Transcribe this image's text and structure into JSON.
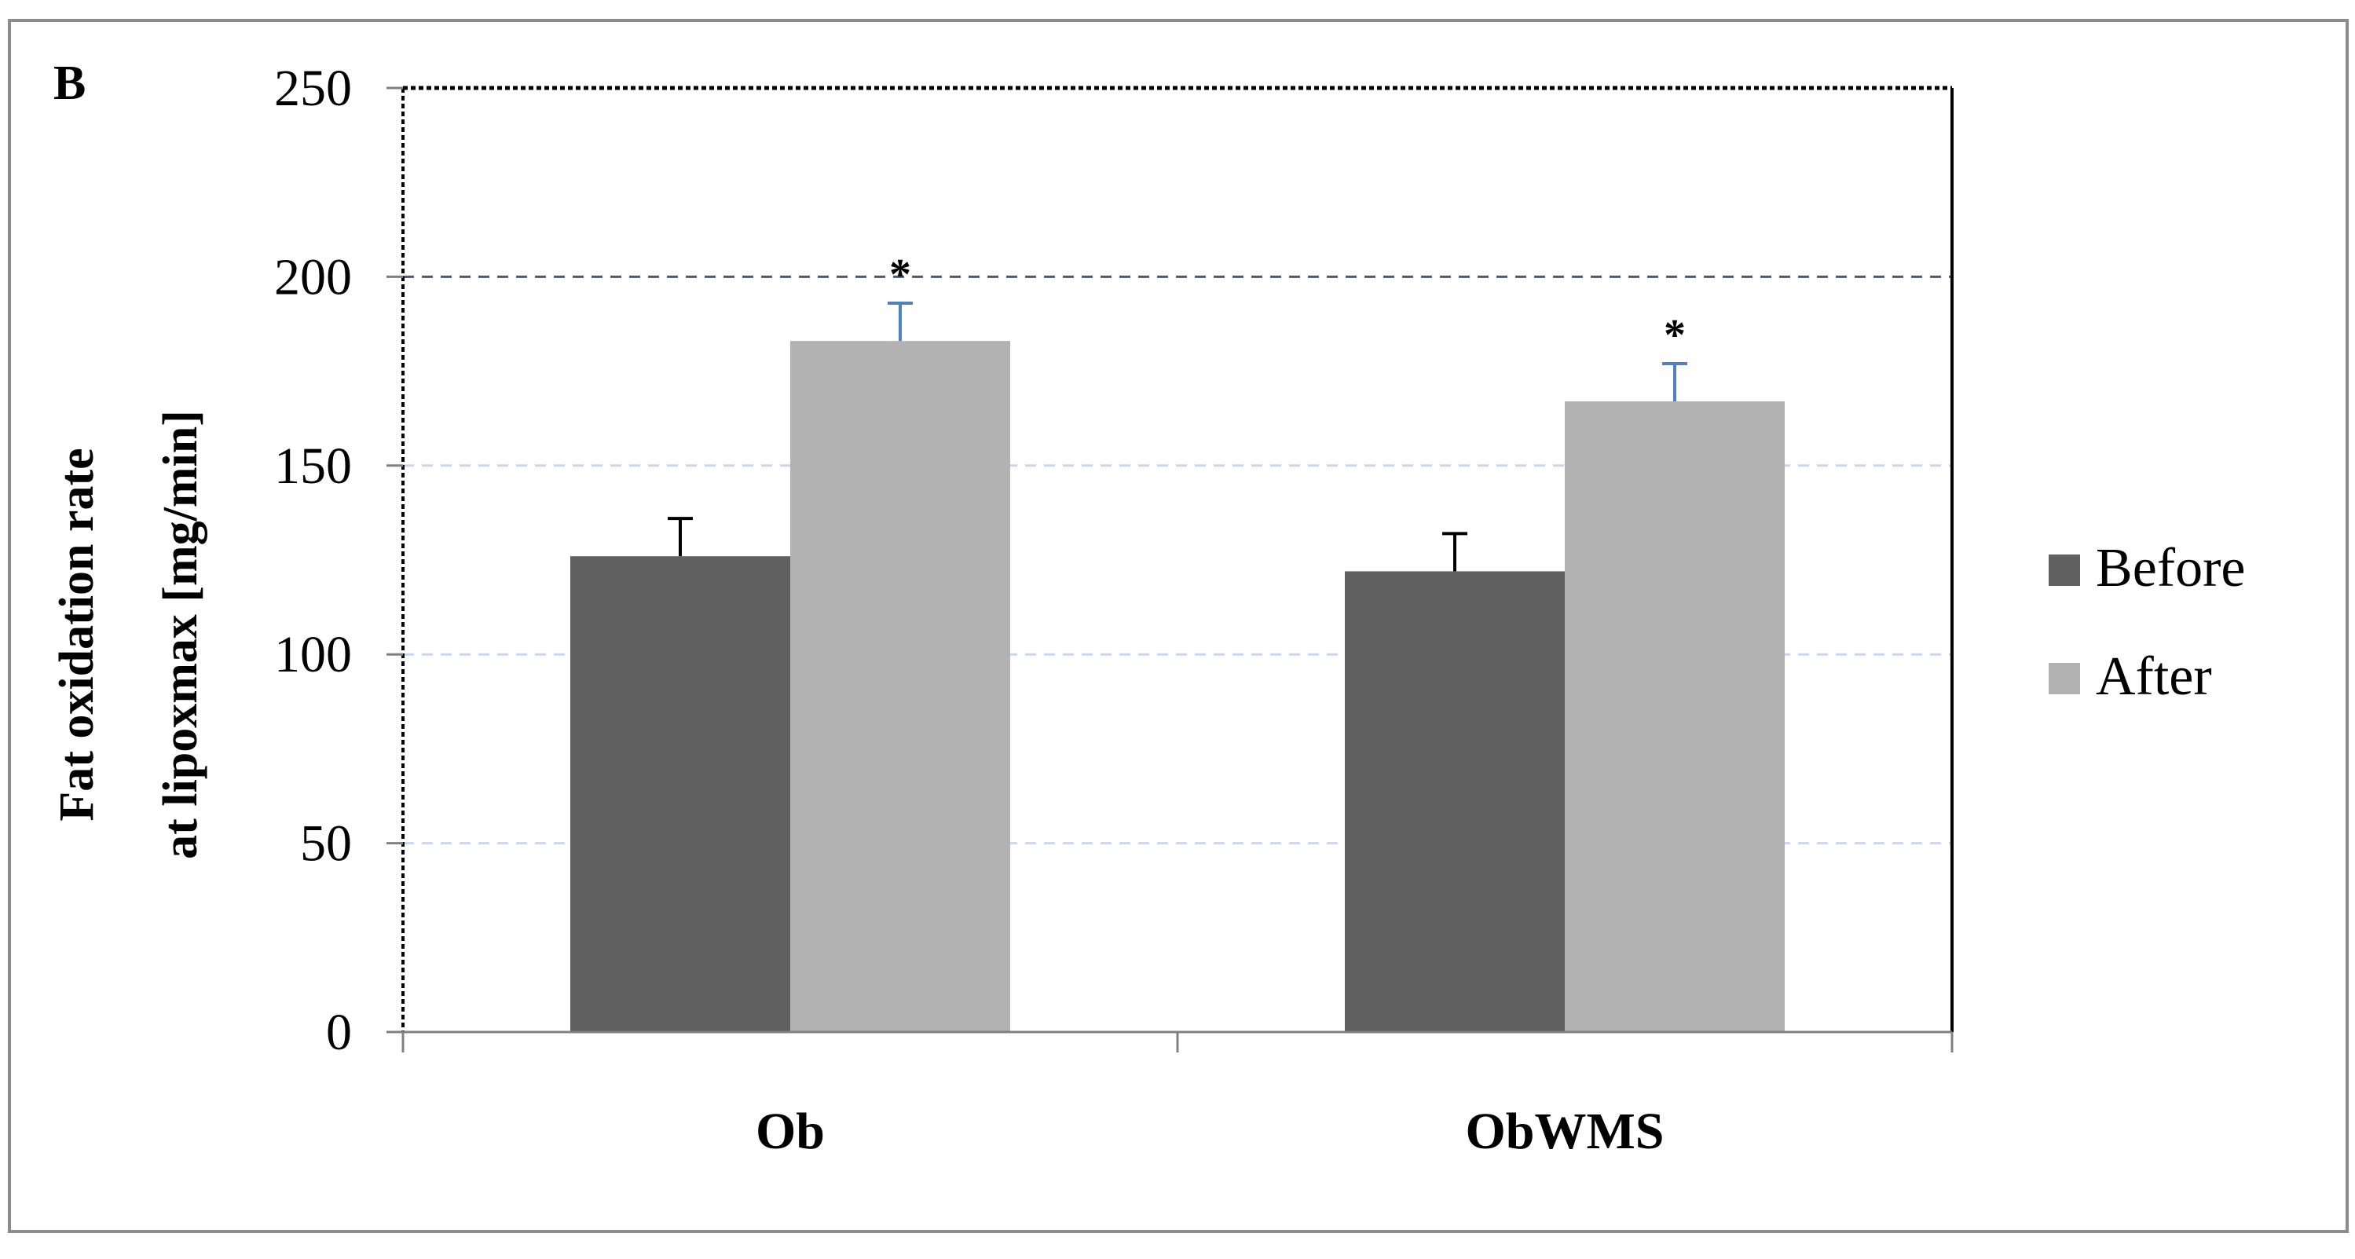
{
  "chart_data": {
    "type": "bar",
    "panel_label": "B",
    "title": "",
    "xlabel": "",
    "ylabel_lines": [
      "Fat oxidation rate",
      "at lipoxmax [mg/min]"
    ],
    "categories": [
      "Ob",
      "ObWMS"
    ],
    "series": [
      {
        "name": "Before",
        "color": "#606060",
        "values": [
          126,
          122
        ],
        "errors": [
          10,
          10
        ],
        "error_color": "#000000",
        "annotations": [
          "",
          ""
        ]
      },
      {
        "name": "After",
        "color": "#b2b2b2",
        "values": [
          183,
          167
        ],
        "errors": [
          10,
          10
        ],
        "error_color": "#4f81bd",
        "annotations": [
          "*",
          "*"
        ]
      }
    ],
    "ylim": [
      0,
      250
    ],
    "yticks": [
      0,
      50,
      100,
      150,
      200,
      250
    ],
    "grid": true,
    "legend_position": "right"
  }
}
